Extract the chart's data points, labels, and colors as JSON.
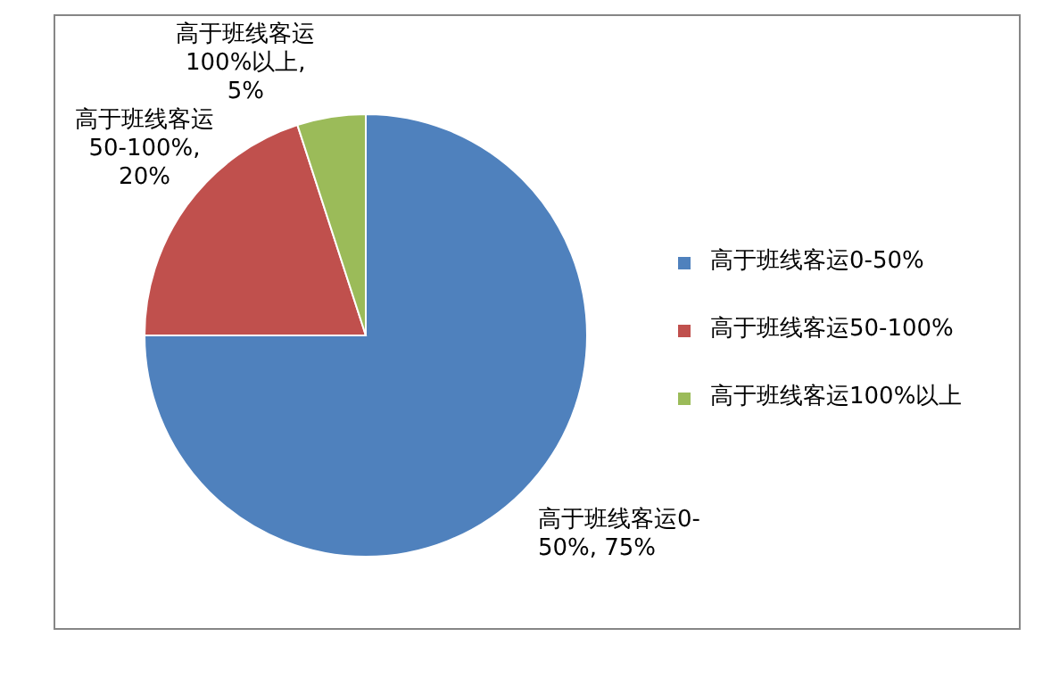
{
  "chart_data": {
    "type": "pie",
    "categories": [
      "高于班线客运0-50%",
      "高于班线客运50-100%",
      "高于班线客运100%以上"
    ],
    "values": [
      75,
      20,
      5
    ],
    "colors": [
      "#4f81bd",
      "#c0504d",
      "#9bbb59"
    ],
    "value_labels": [
      "高于班线客运0-50%, 75%",
      "高于班线客运50-100%, 20%",
      "高于班线客运100%以上, 5%"
    ],
    "legend": "right"
  }
}
